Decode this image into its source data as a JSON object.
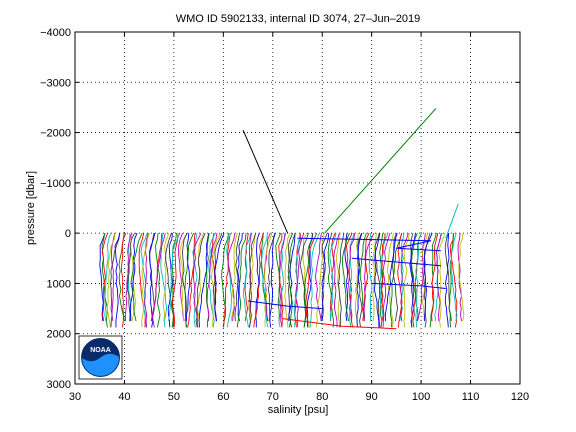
{
  "chart_data": {
    "type": "line",
    "title": "WMO ID 5902133, internal ID 3074, 27–Jun–2019",
    "xlabel": "salinity [psu]",
    "ylabel": "pressure [dbar]",
    "xlim": [
      30,
      120
    ],
    "ylim": [
      -4000,
      3000
    ],
    "y_reversed": true,
    "grid": true,
    "x_ticks": [
      "30",
      "40",
      "50",
      "60",
      "70",
      "80",
      "90",
      "100",
      "110",
      "120"
    ],
    "y_ticks": [
      "−4000",
      "−3000",
      "−2000",
      "−1000",
      "0",
      "1000",
      "2000",
      "3000"
    ],
    "profile_offset_step": 0.5,
    "profile_count": 146,
    "profile_x_start": 35,
    "profile_colors": [
      "#0000ff",
      "#008000",
      "#ff0000",
      "#00bfbf",
      "#bf00bf",
      "#bfbf00",
      "#404040"
    ],
    "series": [
      {
        "name": "",
        "color": "#000000",
        "points": [
          [
            64,
            -2050
          ],
          [
            73,
            0
          ]
        ]
      },
      {
        "name": "",
        "color": "#008000",
        "points": [
          [
            80.5,
            0
          ],
          [
            103,
            -2480
          ]
        ]
      },
      {
        "name": "",
        "color": "#00bfbf",
        "points": [
          [
            105,
            100
          ],
          [
            107.5,
            -580
          ]
        ]
      },
      {
        "name": "",
        "color": "#0000ff",
        "points": [
          [
            75,
            100
          ],
          [
            102,
            150
          ],
          [
            95,
            300
          ],
          [
            104,
            350
          ]
        ]
      },
      {
        "name": "",
        "color": "#0000ff",
        "points": [
          [
            65,
            1350
          ],
          [
            73,
            1450
          ],
          [
            80,
            1500
          ]
        ]
      },
      {
        "name": "",
        "color": "#ff0000",
        "points": [
          [
            72,
            1700
          ],
          [
            84,
            1850
          ],
          [
            95,
            1900
          ]
        ]
      },
      {
        "name": "",
        "color": "#0000ff",
        "points": [
          [
            86,
            500
          ],
          [
            98,
            600
          ],
          [
            104,
            650
          ]
        ]
      },
      {
        "name": "",
        "color": "#0000ff",
        "points": [
          [
            90,
            1000
          ],
          [
            100,
            1050
          ],
          [
            105,
            1100
          ]
        ]
      }
    ]
  },
  "logo": {
    "text": "NOAA"
  }
}
